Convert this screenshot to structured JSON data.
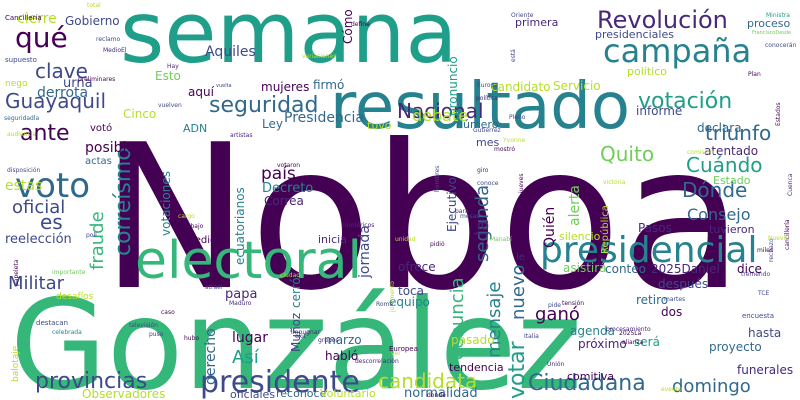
{
  "colors": {
    "background": "#ffffff",
    "palette": [
      "#440154",
      "#482878",
      "#3e4989",
      "#31688e",
      "#26828e",
      "#1f9e89",
      "#35b779",
      "#6ece58",
      "#b5de2b",
      "#fde725"
    ]
  },
  "words": [
    {
      "text": "Noboa",
      "color": "#440154"
    },
    {
      "text": "González",
      "color": "#35b779"
    },
    {
      "text": "semana",
      "color": "#1f9e89"
    },
    {
      "text": "resultado",
      "color": "#26828e"
    },
    {
      "text": "electoral",
      "color": "#35b779"
    },
    {
      "text": "presidencial",
      "color": "#26828e"
    },
    {
      "text": "presidente",
      "color": "#3e4989"
    },
    {
      "text": "campaña",
      "color": "#26828e"
    },
    {
      "text": "voto",
      "color": "#31688e"
    },
    {
      "text": "qué",
      "color": "#440154"
    },
    {
      "text": "Revolución",
      "color": "#482878"
    },
    {
      "text": "votación",
      "color": "#1f9e89"
    },
    {
      "text": "seguridad",
      "color": "#31688e"
    },
    {
      "text": "Ciudadana",
      "color": "#31688e"
    },
    {
      "text": "provincias",
      "color": "#3e4989"
    },
    {
      "text": "candidata",
      "color": "#b5de2b"
    },
    {
      "text": "Guayaquil",
      "color": "#3e4989"
    },
    {
      "text": "Nacional",
      "color": "#482878"
    },
    {
      "text": "triunfo",
      "color": "#31688e"
    },
    {
      "text": "Quito",
      "color": "#6ece58"
    },
    {
      "text": "Cuándo",
      "color": "#1f9e89"
    },
    {
      "text": "Dónde",
      "color": "#31688e"
    },
    {
      "text": "ante",
      "color": "#440154"
    },
    {
      "text": "clave",
      "color": "#3e4989"
    },
    {
      "text": "es",
      "color": "#3e4989"
    },
    {
      "text": "oficial",
      "color": "#3e4989"
    },
    {
      "text": "fraude",
      "color": "#35b779"
    },
    {
      "text": "correísmo",
      "color": "#26828e"
    },
    {
      "text": "Militar",
      "color": "#3e4989"
    },
    {
      "text": "votar",
      "color": "#1f9e89"
    },
    {
      "text": "domingo",
      "color": "#31688e"
    },
    {
      "text": "Consejo",
      "color": "#31688e"
    },
    {
      "text": "debate",
      "color": "#b5de2b"
    },
    {
      "text": "mensaje",
      "color": "#26828e"
    },
    {
      "text": "nuevo",
      "color": "#31688e"
    },
    {
      "text": "denuncia",
      "color": "#35b779"
    },
    {
      "text": "segunda",
      "color": "#31688e"
    },
    {
      "text": "Así",
      "color": "#1f9e89"
    },
    {
      "text": "ganó",
      "color": "#440154"
    },
    {
      "text": "jornada",
      "color": "#3e4989"
    },
    {
      "text": "país",
      "color": "#440154"
    },
    {
      "text": "la",
      "color": "#482878"
    },
    {
      "text": "Presidencia",
      "color": "#31688e"
    },
    {
      "text": "cierre",
      "color": "#b5de2b"
    },
    {
      "text": "Gobierno",
      "color": "#3e4989"
    },
    {
      "text": "derrota",
      "color": "#31688e"
    },
    {
      "text": "urna",
      "color": "#3e4989"
    },
    {
      "text": "Esto",
      "color": "#6ece58"
    },
    {
      "text": "aquí",
      "color": "#440154"
    },
    {
      "text": "mujeres",
      "color": "#440154"
    },
    {
      "text": "firmó",
      "color": "#31688e"
    },
    {
      "text": "Ley",
      "color": "#31688e"
    },
    {
      "text": "Aquiles",
      "color": "#3e4989"
    },
    {
      "text": "Cinco",
      "color": "#b5de2b"
    },
    {
      "text": "votó",
      "color": "#440154"
    },
    {
      "text": "ADN",
      "color": "#26828e"
    },
    {
      "text": "posible",
      "color": "#440154"
    },
    {
      "text": "actas",
      "color": "#31688e"
    },
    {
      "text": "estas",
      "color": "#b5de2b"
    },
    {
      "text": "Decreto",
      "color": "#26828e"
    },
    {
      "text": "Correa",
      "color": "#482878"
    },
    {
      "text": "votaciones",
      "color": "#26828e"
    },
    {
      "text": "ecuatorianos",
      "color": "#26828e"
    },
    {
      "text": "reelección",
      "color": "#3e4989"
    },
    {
      "text": "medidas",
      "color": "#440154"
    },
    {
      "text": "inicia",
      "color": "#482878"
    },
    {
      "text": "papa",
      "color": "#482878"
    },
    {
      "text": "derecho",
      "color": "#31688e"
    },
    {
      "text": "lugar",
      "color": "#440154"
    },
    {
      "text": "cerró",
      "color": "#26828e"
    },
    {
      "text": "Muñoz",
      "color": "#3e4989"
    },
    {
      "text": "marzo",
      "color": "#31688e"
    },
    {
      "text": "habló",
      "color": "#440154"
    },
    {
      "text": "oficiales",
      "color": "#3e4989"
    },
    {
      "text": "reconoce",
      "color": "#31688e"
    },
    {
      "text": "Voluntario",
      "color": "#b5de2b"
    },
    {
      "text": "normalidad",
      "color": "#31688e"
    },
    {
      "text": "Observadores",
      "color": "#b5de2b"
    },
    {
      "text": "pasado",
      "color": "#b5de2b"
    },
    {
      "text": "tendencia",
      "color": "#440154"
    },
    {
      "text": "comitiva",
      "color": "#440154"
    },
    {
      "text": "próximo",
      "color": "#482878"
    },
    {
      "text": "agenda",
      "color": "#26828e"
    },
    {
      "text": "equipo",
      "color": "#26828e"
    },
    {
      "text": "toca",
      "color": "#3e4989"
    },
    {
      "text": "ofrece",
      "color": "#482878"
    },
    {
      "text": "asistirá",
      "color": "#6ece58"
    },
    {
      "text": "conteo",
      "color": "#31688e"
    },
    {
      "text": "2025Daniel",
      "color": "#482878"
    },
    {
      "text": "dice",
      "color": "#440154"
    },
    {
      "text": "después",
      "color": "#3e4989"
    },
    {
      "text": "retiro",
      "color": "#31688e"
    },
    {
      "text": "dos",
      "color": "#440154"
    },
    {
      "text": "hasta",
      "color": "#3e4989"
    },
    {
      "text": "proyecto",
      "color": "#31688e"
    },
    {
      "text": "funerales",
      "color": "#482878"
    },
    {
      "text": "será",
      "color": "#1f9e89"
    },
    {
      "text": "Quién",
      "color": "#440154"
    },
    {
      "text": "alerta",
      "color": "#6ece58"
    },
    {
      "text": "Pasos",
      "color": "#482878"
    },
    {
      "text": "Ejecutivo",
      "color": "#3e4989"
    },
    {
      "text": "declara",
      "color": "#31688e"
    },
    {
      "text": "atentado",
      "color": "#482878"
    },
    {
      "text": "tuvieron",
      "color": "#482878"
    },
    {
      "text": "Estado",
      "color": "#6ece58"
    },
    {
      "text": "informe",
      "color": "#3e4989"
    },
    {
      "text": "candidato",
      "color": "#b5de2b"
    },
    {
      "text": "Servicio",
      "color": "#b5de2b"
    },
    {
      "text": "número",
      "color": "#31688e"
    },
    {
      "text": "mes",
      "color": "#3e4989"
    },
    {
      "text": "tuvo",
      "color": "#b5de2b"
    },
    {
      "text": "pronunció",
      "color": "#1f9e89"
    },
    {
      "text": "político",
      "color": "#b5de2b"
    },
    {
      "text": "primera",
      "color": "#482878"
    },
    {
      "text": "presidenciales",
      "color": "#3e4989"
    },
    {
      "text": "proceso",
      "color": "#31688e"
    },
    {
      "text": "Cómo",
      "color": "#440154"
    },
    {
      "text": "silencio",
      "color": "#b5de2b"
    },
    {
      "text": "República",
      "color": "#b5de2b"
    },
    {
      "text": "nego",
      "color": "#b5de2b"
    },
    {
      "text": "supuesto",
      "color": "#3e4989"
    },
    {
      "text": "Cancillería",
      "color": "#440154"
    },
    {
      "text": "seguridadla",
      "color": "#31688e"
    },
    {
      "text": "preliminares",
      "color": "#440154"
    },
    {
      "text": "importante",
      "color": "#6ece58"
    },
    {
      "text": "desafíos",
      "color": "#b5de2b"
    },
    {
      "text": "balotaje",
      "color": "#b5de2b"
    },
    {
      "text": "papeleta",
      "color": "#440154"
    },
    {
      "text": "destacan",
      "color": "#3e4989"
    },
    {
      "text": "celebrada",
      "color": "#26828e"
    },
    {
      "text": "televisión",
      "color": "#3e4989"
    },
    {
      "text": "encuesta",
      "color": "#3e4989"
    },
    {
      "text": "procesamiento",
      "color": "#482878"
    },
    {
      "text": "vuelta",
      "color": "#3e4989"
    },
    {
      "text": "define",
      "color": "#440154"
    },
    {
      "text": "Oriente",
      "color": "#3e4989"
    },
    {
      "text": "Ministra",
      "color": "#1f9e89"
    },
    {
      "text": "conocerán",
      "color": "#3e4989"
    },
    {
      "text": "FranciscoDesde",
      "color": "#6ece58"
    },
    {
      "text": "reclamo",
      "color": "#3e4989"
    },
    {
      "text": "MedioEl",
      "color": "#482878"
    },
    {
      "text": "Hay",
      "color": "#482878"
    },
    {
      "text": "total",
      "color": "#b5de2b"
    },
    {
      "text": "Plan",
      "color": "#440154"
    },
    {
      "text": "audiencia",
      "color": "#b5de2b"
    },
    {
      "text": "disposición",
      "color": "#3e4989"
    },
    {
      "text": "juramento",
      "color": "#b5de2b"
    },
    {
      "text": "hombres",
      "color": "#3e4989"
    },
    {
      "text": "numéricos",
      "color": "#482878"
    },
    {
      "text": "cargo",
      "color": "#b5de2b"
    },
    {
      "text": "trabajo",
      "color": "#440154"
    },
    {
      "text": "votaron",
      "color": "#440154"
    },
    {
      "text": "artistas",
      "color": "#482878"
    },
    {
      "text": "mostró",
      "color": "#440154"
    },
    {
      "text": "jueves",
      "color": "#440154"
    },
    {
      "text": "giro",
      "color": "#482878"
    },
    {
      "text": "conoce",
      "color": "#3e4989"
    },
    {
      "text": "unidad",
      "color": "#b5de2b"
    },
    {
      "text": "pidió",
      "color": "#440154"
    },
    {
      "text": "Manabí",
      "color": "#6ece58"
    },
    {
      "text": "vuelven",
      "color": "#3e4989"
    },
    {
      "text": "Europea",
      "color": "#440154"
    },
    {
      "text": "tremendo",
      "color": "#3e4989"
    },
    {
      "text": "martes",
      "color": "#3e4989"
    },
    {
      "text": "Italia",
      "color": "#3e4989"
    },
    {
      "text": "Unión",
      "color": "#482878"
    },
    {
      "text": "impugnar",
      "color": "#482878"
    },
    {
      "text": "descorrelación",
      "color": "#482878"
    },
    {
      "text": "exit",
      "color": "#482878"
    },
    {
      "text": "puso",
      "color": "#3e4989"
    },
    {
      "text": "hubo",
      "color": "#440154"
    },
    {
      "text": "donde",
      "color": "#440154"
    },
    {
      "text": "evento",
      "color": "#b5de2b"
    },
    {
      "text": "victoria",
      "color": "#b5de2b"
    },
    {
      "text": "comisión",
      "color": "#b5de2b"
    },
    {
      "text": "Gutiérrez",
      "color": "#3e4989"
    },
    {
      "text": "Pleno",
      "color": "#3e4989"
    },
    {
      "text": "está",
      "color": "#3e4989"
    },
    {
      "text": "política",
      "color": "#482878"
    },
    {
      "text": "Europa",
      "color": "#3e4989"
    },
    {
      "text": "grupos",
      "color": "#482878"
    },
    {
      "text": "Roma",
      "color": "#3e4989"
    },
    {
      "text": "2025La",
      "color": "#440154"
    },
    {
      "text": "alianza",
      "color": "#440154"
    },
    {
      "text": "atraer",
      "color": "#3e4989"
    },
    {
      "text": "Maduro",
      "color": "#482878"
    },
    {
      "text": "caso",
      "color": "#440154"
    },
    {
      "text": "ciudad",
      "color": "#b5de2b"
    },
    {
      "text": "rechazo",
      "color": "#3e4989"
    },
    {
      "text": "poll",
      "color": "#3e4989"
    },
    {
      "text": "TCE",
      "color": "#3e4989"
    },
    {
      "text": "ver",
      "color": "#b5de2b"
    },
    {
      "text": "Yvonne",
      "color": "#b5de2b"
    },
    {
      "text": "Cuenca",
      "color": "#482878"
    },
    {
      "text": "Estados",
      "color": "#440154"
    },
    {
      "text": "variaciones",
      "color": "#b5de2b"
    },
    {
      "text": "cancillería",
      "color": "#440154"
    },
    {
      "text": "para",
      "color": "#482878"
    },
    {
      "text": "pide",
      "color": "#3e4989"
    },
    {
      "text": "tensión",
      "color": "#440154"
    },
    {
      "text": "le",
      "color": "#482878"
    },
    {
      "text": "mesas",
      "color": "#3e4989"
    },
    {
      "text": "Nuevo",
      "color": "#b5de2b"
    },
    {
      "text": "miles",
      "color": "#440154"
    }
  ]
}
